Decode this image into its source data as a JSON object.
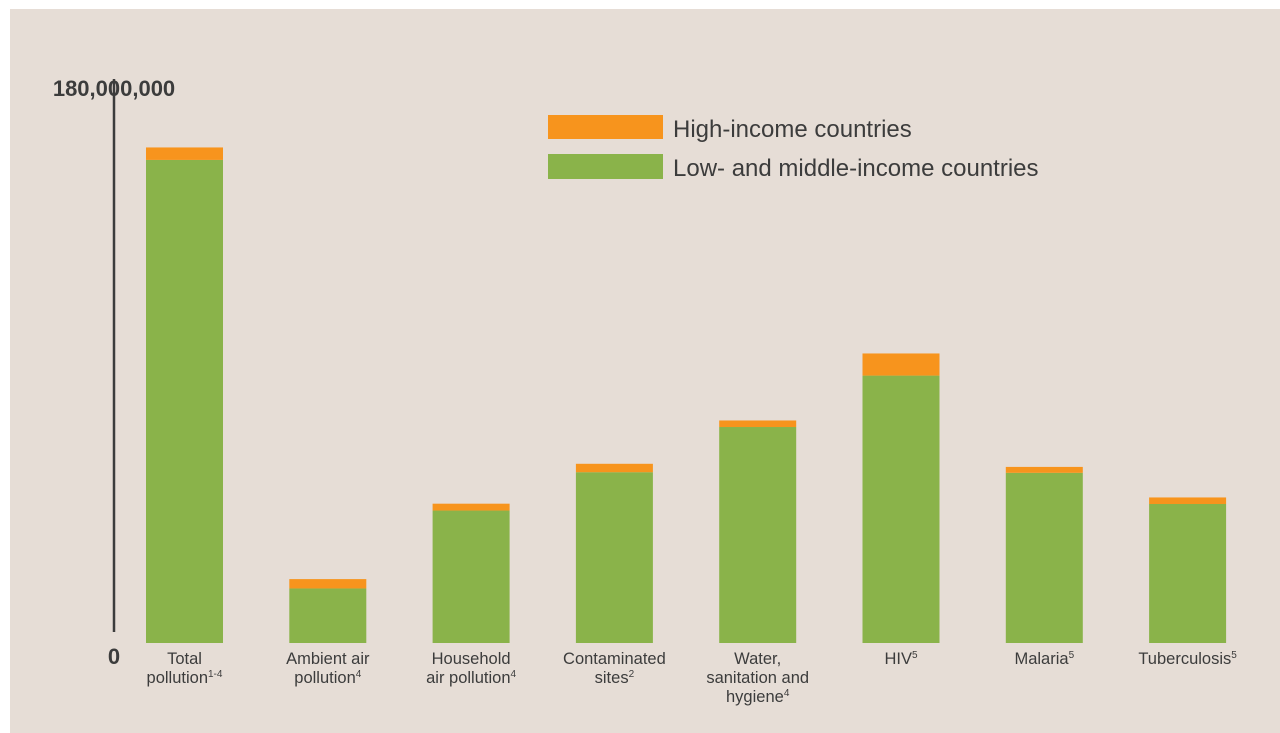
{
  "chart_data": {
    "type": "bar",
    "stacked": true,
    "ylim": [
      0,
      180000000
    ],
    "yticks": [
      "0",
      "180,000,000"
    ],
    "categories": [
      {
        "lines": [
          "Total",
          "pollution"
        ],
        "sup": "1-4"
      },
      {
        "lines": [
          "Ambient air",
          "pollution"
        ],
        "sup": "4"
      },
      {
        "lines": [
          "Household",
          "air pollution"
        ],
        "sup": "4"
      },
      {
        "lines": [
          "Contaminated",
          "sites"
        ],
        "sup": "2"
      },
      {
        "lines": [
          "Water,",
          "sanitation and",
          "hygiene"
        ],
        "sup": "4"
      },
      {
        "lines": [
          "HIV"
        ],
        "sup": "5"
      },
      {
        "lines": [
          "Malaria"
        ],
        "sup": "5"
      },
      {
        "lines": [
          "Tuberculosis"
        ],
        "sup": "5"
      }
    ],
    "series": [
      {
        "name": "Low- and middle-income countries",
        "color": "#8ab34a",
        "values": [
          155000000,
          17500000,
          42500000,
          54800000,
          69300000,
          85800000,
          54600000,
          44600000
        ]
      },
      {
        "name": "High-income countries",
        "color": "#f7941d",
        "values": [
          4000000,
          3000000,
          2200000,
          2700000,
          2100000,
          7100000,
          1900000,
          2100000
        ]
      }
    ],
    "legend": {
      "position": "top-right",
      "entries": [
        {
          "label": "High-income countries",
          "color": "#f7941d"
        },
        {
          "label": "Low- and middle-income countries",
          "color": "#8ab34a"
        }
      ]
    }
  }
}
